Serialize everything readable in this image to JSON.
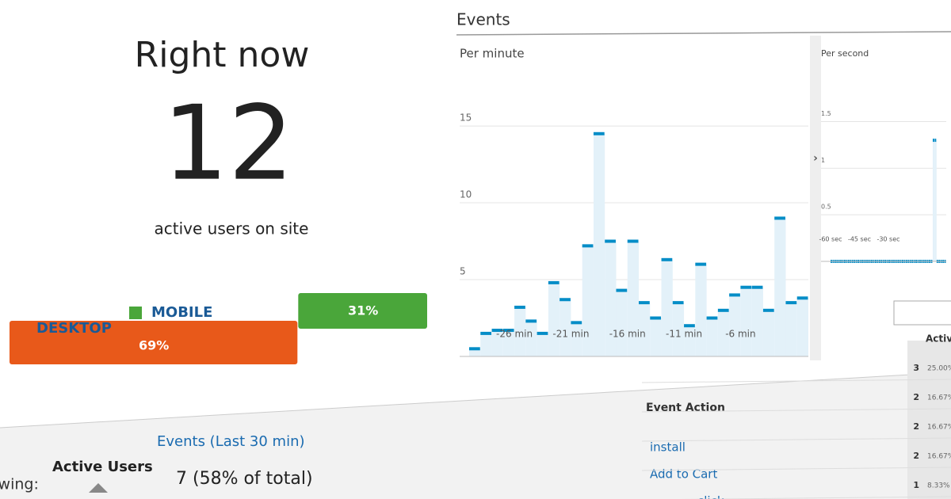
{
  "realtime": {
    "title": "Right now",
    "count": "12",
    "subtitle": "active users on site",
    "devices": {
      "categories": [
        "DESKTOP",
        "MOBILE"
      ],
      "values": [
        69,
        31
      ],
      "value_labels": [
        "69%",
        "31%"
      ],
      "colors": [
        "#e8591a",
        "#4aa63a"
      ]
    }
  },
  "events": {
    "title": "Events",
    "per_minute": {
      "type": "bar",
      "label": "Per minute",
      "color": "#058dc7",
      "xlim": [
        -30,
        0
      ],
      "xticks": [
        {
          "value": -26,
          "label": "-26 min"
        },
        {
          "value": -21,
          "label": "-21 min"
        },
        {
          "value": -16,
          "label": "-16 min"
        },
        {
          "value": -11,
          "label": "-11 min"
        },
        {
          "value": -6,
          "label": "-6 min"
        }
      ],
      "ylim": [
        0,
        16.5
      ],
      "yticks": [
        5,
        10,
        15
      ],
      "values": [
        0.5,
        1.5,
        1.7,
        1.7,
        3.2,
        2.3,
        1.5,
        4.8,
        3.7,
        2.2,
        7.2,
        14.5,
        7.5,
        4.3,
        7.5,
        3.5,
        2.5,
        6.3,
        3.5,
        2.0,
        6.0,
        2.5,
        3.0,
        4.0,
        4.5,
        4.5,
        3.0,
        9.0,
        3.5,
        3.8
      ]
    },
    "per_second": {
      "type": "bar",
      "label": "Per second",
      "color": "#058dc7",
      "xlim": [
        -60,
        0
      ],
      "xticks": [
        {
          "value": -60,
          "label": "-60 sec"
        },
        {
          "value": -45,
          "label": "-45 sec"
        },
        {
          "value": -30,
          "label": "-30 sec"
        }
      ],
      "ylim": [
        0,
        1.7
      ],
      "yticks": [
        0.5,
        1,
        1.5
      ],
      "values": [
        0,
        0,
        0,
        0,
        0,
        0,
        0,
        0,
        0,
        0,
        0,
        0,
        0,
        0,
        0,
        0,
        0,
        0,
        0,
        0,
        0,
        0,
        0,
        0,
        0,
        0,
        0,
        0,
        0,
        0,
        0,
        0,
        0,
        0,
        0,
        0,
        0,
        0,
        0,
        0,
        0,
        0,
        0,
        0,
        0,
        0,
        0,
        0,
        0,
        0,
        0,
        0,
        0,
        1.3,
        1.3,
        0,
        0,
        0,
        0,
        0
      ]
    }
  },
  "tabs": {
    "prefix": "Viewing:",
    "items": [
      "Active Users",
      "Events (Last 30 min)"
    ],
    "summary": "7 (58% of total)"
  },
  "table": {
    "headers": [
      "Event Action",
      "Active Users"
    ],
    "rows": [
      [
        "install",
        3,
        "25.00%"
      ],
      [
        "Add to Cart",
        2,
        "16.67%"
      ],
      [
        "click",
        2,
        "16.67%"
      ],
      [
        null,
        2,
        "16.67%"
      ],
      [
        null,
        1,
        "8.33%"
      ]
    ]
  }
}
